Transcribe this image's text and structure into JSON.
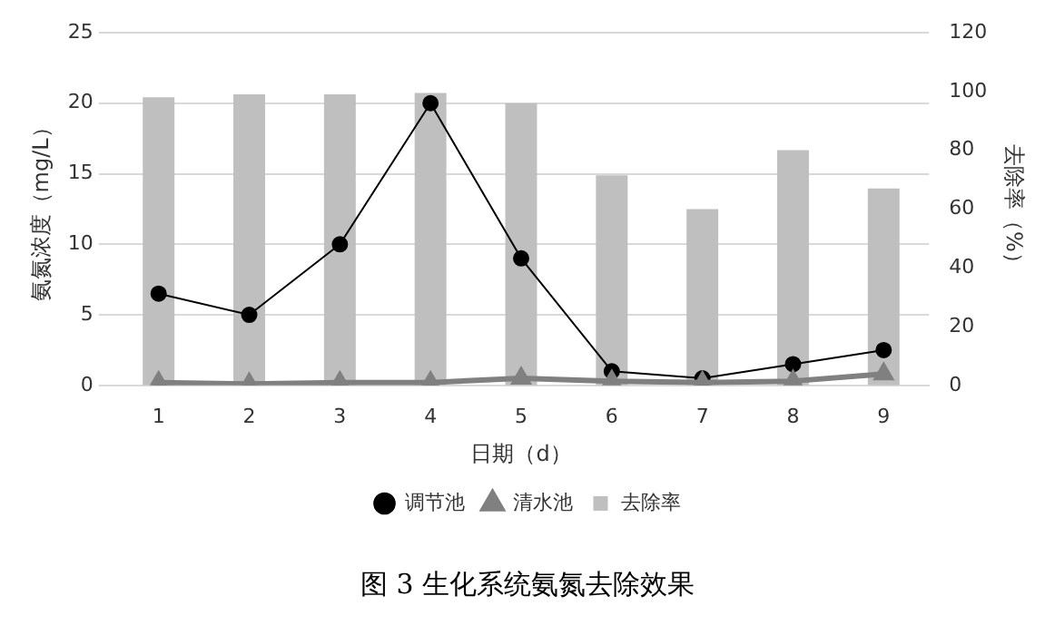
{
  "chart_data": {
    "type": "bar",
    "xlabel": "日期（d）",
    "ylabel": "氨氮浓度（mg/L）",
    "y2label": "去除率（%）",
    "categories": [
      "1",
      "2",
      "3",
      "4",
      "5",
      "6",
      "7",
      "8",
      "9"
    ],
    "series": [
      {
        "name": "调节池",
        "type": "line",
        "color": "#000000",
        "marker": "circle",
        "values": [
          6.5,
          5,
          10,
          20,
          9,
          1,
          0.5,
          1.5,
          2.5
        ]
      },
      {
        "name": "清水池",
        "type": "line",
        "color": "#808080",
        "marker": "triangle",
        "values": [
          0.2,
          0.1,
          0.2,
          0.2,
          0.5,
          0.3,
          0.2,
          0.3,
          0.8
        ]
      },
      {
        "name": "去除率",
        "axis": "y2",
        "color": "#bfbfbf",
        "values": [
          98,
          99,
          99,
          99.5,
          96,
          71.5,
          60,
          80,
          67
        ]
      }
    ],
    "ylim": [
      0,
      25
    ],
    "yticks": [
      0,
      5,
      10,
      15,
      20,
      25
    ],
    "y2lim": [
      0,
      120
    ],
    "y2ticks": [
      0,
      20,
      40,
      60,
      80,
      100,
      120
    ],
    "grid": "y",
    "legend": "bottom",
    "annotations": [
      "图 3 生化系统氨氮去除效果"
    ]
  }
}
